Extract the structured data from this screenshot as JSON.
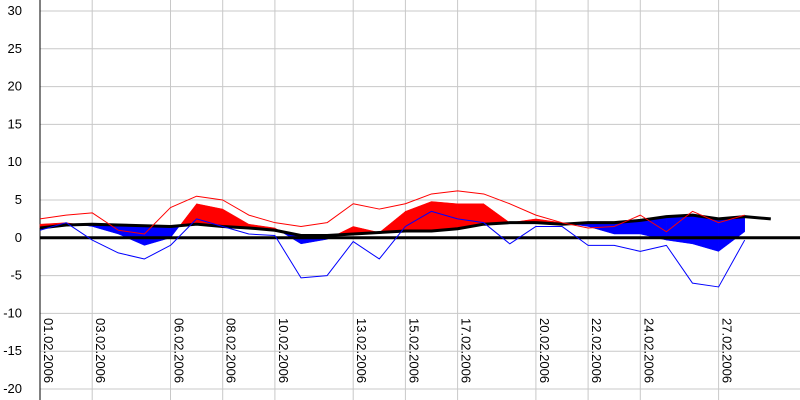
{
  "chart_data": {
    "type": "line",
    "categories": [
      "01.02.2006",
      null,
      "03.02.2006",
      null,
      null,
      "06.02.2006",
      null,
      "08.02.2006",
      null,
      "10.02.2006",
      null,
      null,
      "13.02.2006",
      null,
      "15.02.2006",
      null,
      "17.02.2006",
      null,
      null,
      "20.02.2006",
      null,
      "22.02.2006",
      null,
      "24.02.2006",
      null,
      null,
      "27.02.2006",
      null,
      null
    ],
    "series": [
      {
        "color": "#000000",
        "line_width": 3,
        "values": [
          1.3,
          1.7,
          1.8,
          1.7,
          1.6,
          1.5,
          1.8,
          1.5,
          1.3,
          1.0,
          0.3,
          0.3,
          0.5,
          0.7,
          0.9,
          0.9,
          1.2,
          1.8,
          2.0,
          2.0,
          1.8,
          2.0,
          2.0,
          2.3,
          2.8,
          3.0,
          2.5,
          2.8,
          2.5
        ]
      },
      {
        "color": "#000000",
        "line_width": 0,
        "values": [
          1.8,
          2.0,
          1.5,
          0.5,
          -1.0,
          0.0,
          4.5,
          3.8,
          1.8,
          1.3,
          -0.8,
          -0.2,
          1.5,
          0.7,
          3.5,
          4.8,
          4.5,
          4.5,
          2.0,
          2.5,
          2.0,
          1.5,
          0.5,
          0.5,
          -0.3,
          -0.8,
          -1.8,
          0.8,
          null
        ]
      },
      {
        "color": "#ff0000",
        "line_width": 1,
        "values": [
          2.5,
          3.0,
          3.3,
          1.0,
          0.5,
          4.0,
          5.5,
          5.0,
          3.0,
          2.0,
          1.5,
          2.0,
          4.5,
          3.8,
          4.5,
          5.8,
          6.2,
          5.8,
          4.5,
          3.0,
          2.0,
          1.3,
          1.5,
          3.0,
          0.8,
          3.5,
          2.0,
          3.0,
          null
        ]
      },
      {
        "color": "#0000ff",
        "line_width": 1,
        "values": [
          1.0,
          2.0,
          -0.3,
          -2.0,
          -2.8,
          -1.0,
          2.5,
          1.5,
          0.5,
          0.3,
          -5.3,
          -5.0,
          -0.5,
          -2.8,
          1.5,
          3.5,
          2.5,
          2.0,
          -0.8,
          1.5,
          1.5,
          -1.0,
          -1.0,
          -1.8,
          -1.0,
          -6.0,
          -6.5,
          -0.3,
          null
        ]
      }
    ],
    "fill": {
      "series": [
        1,
        0
      ],
      "above": "#ff0000",
      "below": "#0000ff"
    },
    "ylim": [
      -20,
      30
    ],
    "yticks": [
      -20,
      -15,
      -10,
      -5,
      0,
      5,
      10,
      15,
      20,
      25,
      30
    ],
    "grid": true
  }
}
